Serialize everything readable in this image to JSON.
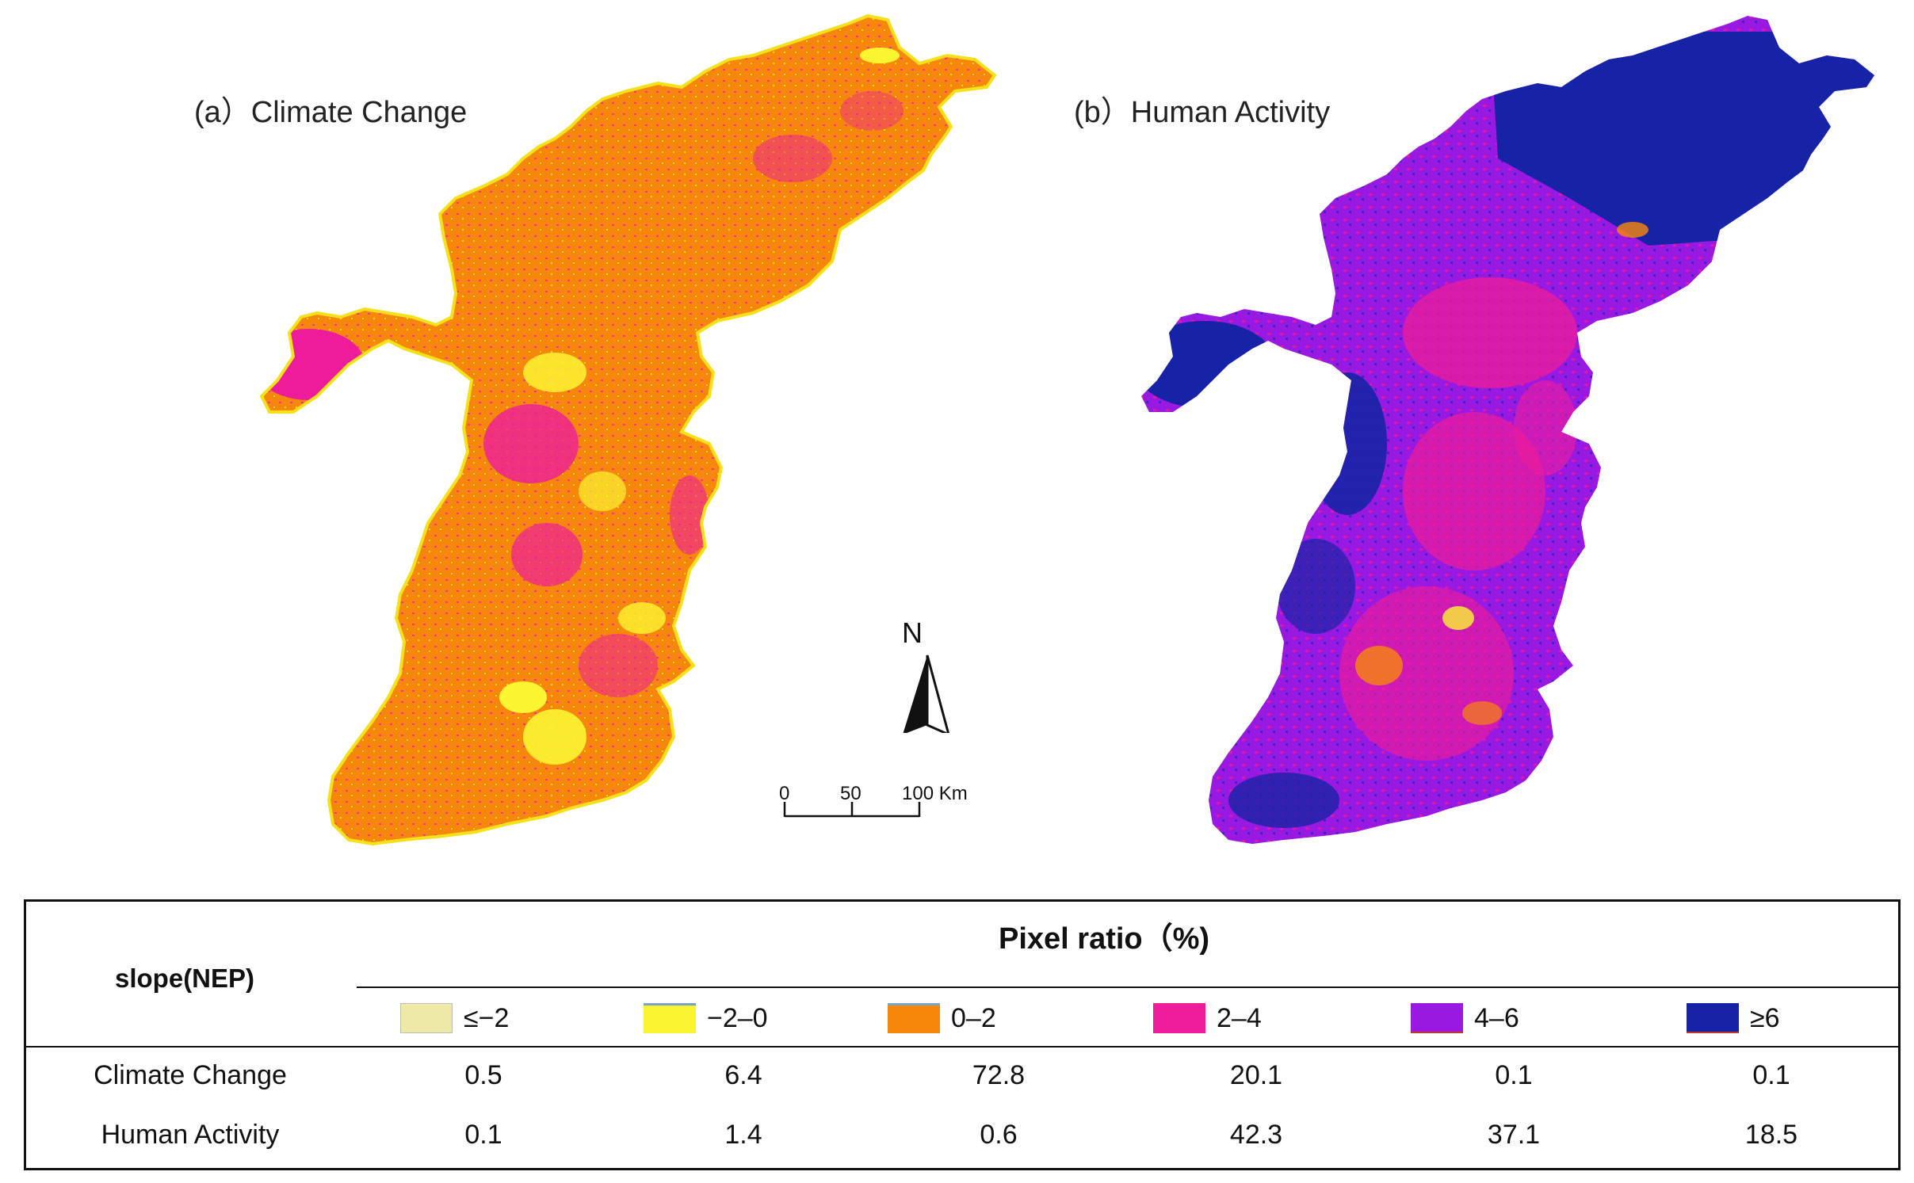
{
  "panels": {
    "a_title": "(a）Climate Change",
    "b_title": "(b）Human Activity"
  },
  "north_arrow": {
    "label": "N"
  },
  "scale_bar": {
    "ticks": [
      "0",
      "50",
      "100 Km"
    ]
  },
  "table": {
    "header": "Pixel ratio（%)",
    "slope_label": "slope(NEP)",
    "legend": [
      {
        "label": "≤−2",
        "color": "#efe9a8"
      },
      {
        "label": "−2–0",
        "color": "#fbf531"
      },
      {
        "label": "0–2",
        "color": "#f7870a"
      },
      {
        "label": "2–4",
        "color": "#ee1c9a"
      },
      {
        "label": "4–6",
        "color": "#9a19e2"
      },
      {
        "label": "≥6",
        "color": "#1623a6"
      }
    ],
    "rows": [
      {
        "label": "Climate Change",
        "values": [
          "0.5",
          "6.4",
          "72.8",
          "20.1",
          "0.1",
          "0.1"
        ]
      },
      {
        "label": "Human Activity",
        "values": [
          "0.1",
          "1.4",
          "0.6",
          "42.3",
          "37.1",
          "18.5"
        ]
      }
    ]
  },
  "colors": {
    "climate_base": "#f7870a",
    "climate_pink": "#ee1c9a",
    "climate_yellow": "#fbf531",
    "human_purple": "#9a19e2",
    "human_navy": "#1623a6",
    "human_pink": "#ee1c9a"
  }
}
